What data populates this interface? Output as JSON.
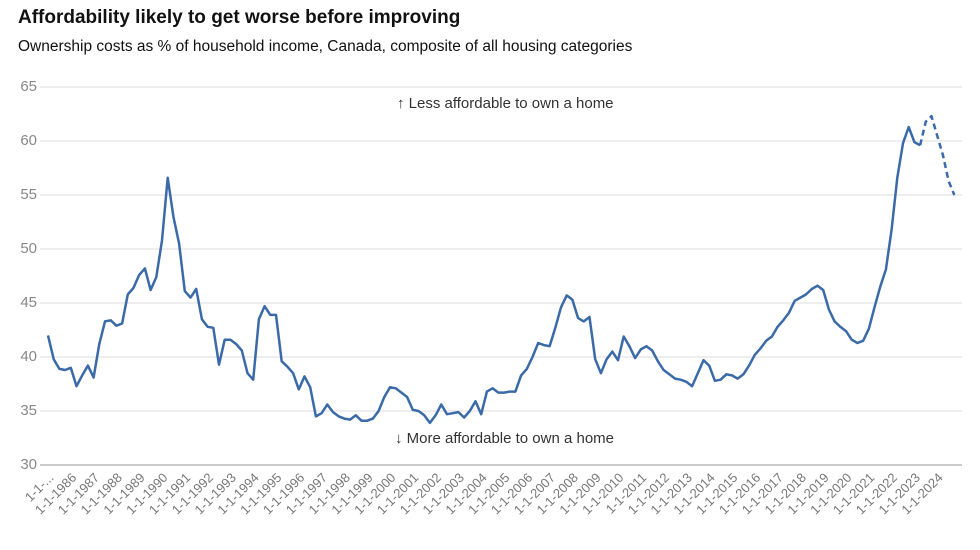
{
  "chart_data": {
    "type": "line",
    "title": "Affordability likely to get worse before improving",
    "subtitle": "Ownership costs as % of household income, Canada, composite of all housing categories",
    "annotations": [
      "↑ Less affordable to own a home",
      "↓ More affordable to own a home"
    ],
    "categories": [
      "1-1-...",
      null,
      null,
      null,
      "1-1-1986",
      null,
      null,
      null,
      "1-1-1987",
      null,
      null,
      null,
      "1-1-1988",
      null,
      null,
      null,
      "1-1-1989",
      null,
      null,
      null,
      "1-1-1990",
      null,
      null,
      null,
      "1-1-1991",
      null,
      null,
      null,
      "1-1-1992",
      null,
      null,
      null,
      "1-1-1993",
      null,
      null,
      null,
      "1-1-1994",
      null,
      null,
      null,
      "1-1-1995",
      null,
      null,
      null,
      "1-1-1996",
      null,
      null,
      null,
      "1-1-1997",
      null,
      null,
      null,
      "1-1-1998",
      null,
      null,
      null,
      "1-1-1999",
      null,
      null,
      null,
      "1-1-2000",
      null,
      null,
      null,
      "1-1-2001",
      null,
      null,
      null,
      "1-1-2002",
      null,
      null,
      null,
      "1-1-2003",
      null,
      null,
      null,
      "1-1-2004",
      null,
      null,
      null,
      "1-1-2005",
      null,
      null,
      null,
      "1-1-2006",
      null,
      null,
      null,
      "1-1-2007",
      null,
      null,
      null,
      "1-1-2008",
      null,
      null,
      null,
      "1-1-2009",
      null,
      null,
      null,
      "1-1-2010",
      null,
      null,
      null,
      "1-1-2011",
      null,
      null,
      null,
      "1-1-2012",
      null,
      null,
      null,
      "1-1-2013",
      null,
      null,
      null,
      "1-1-2014",
      null,
      null,
      null,
      "1-1-2015",
      null,
      null,
      null,
      "1-1-2016",
      null,
      null,
      null,
      "1-1-2017",
      null,
      null,
      null,
      "1-1-2018",
      null,
      null,
      null,
      "1-1-2019",
      null,
      null,
      null,
      "1-1-2020",
      null,
      null,
      null,
      "1-1-2021",
      null,
      null,
      null,
      "1-1-2022",
      null,
      null,
      null,
      "1-1-2023",
      null,
      null,
      null,
      "1-1-2024",
      null,
      null,
      null
    ],
    "series": [
      {
        "color": "#3a6aa8",
        "dashed": false,
        "values": [
          42,
          39.8,
          38.9,
          38.8,
          39.0,
          37.3,
          38.3,
          39.2,
          38.1,
          41.2,
          43.3,
          43.4,
          42.9,
          43.1,
          45.8,
          46.4,
          47.6,
          48.2,
          46.2,
          47.4,
          50.8,
          56.6,
          53.0,
          50.5,
          46.1,
          45.5,
          46.3,
          43.5,
          42.8,
          42.7,
          39.3,
          41.6,
          41.6,
          41.2,
          40.6,
          38.5,
          37.9,
          43.5,
          44.7,
          43.9,
          43.9,
          39.6,
          39.1,
          38.5,
          37.0,
          38.2,
          37.2,
          34.5,
          34.8,
          35.6,
          34.9,
          34.5,
          34.3,
          34.2,
          34.6,
          34.1,
          34.1,
          34.3,
          35.0,
          36.3,
          37.2,
          37.1,
          36.7,
          36.3,
          35.1,
          35.0,
          34.6,
          33.9,
          34.6,
          35.6,
          34.7,
          34.8,
          34.9,
          34.4,
          35.0,
          35.9,
          34.7,
          36.8,
          37.1,
          36.7,
          36.7,
          36.8,
          36.8,
          38.3,
          38.9,
          40.0,
          41.3,
          41.1,
          41.0,
          42.7,
          44.6,
          45.7,
          45.3,
          43.6,
          43.3,
          43.7,
          39.8,
          38.5,
          39.8,
          40.5,
          39.7,
          41.9,
          41.0,
          39.9,
          40.7,
          41.0,
          40.6,
          39.6,
          38.8,
          38.4,
          38.0,
          37.9,
          37.7,
          37.3,
          38.5,
          39.7,
          39.2,
          37.8,
          37.9,
          38.4,
          38.3,
          38.0,
          38.4,
          39.2,
          40.2,
          40.8,
          41.5,
          41.9,
          42.8,
          43.4,
          44.1,
          45.2,
          45.5,
          45.8,
          46.3,
          46.6,
          46.2,
          44.4,
          43.3,
          42.8,
          42.4,
          41.6,
          41.3,
          41.5,
          42.6,
          44.6,
          46.5,
          48.1,
          51.8,
          56.6,
          59.8,
          61.3,
          59.9,
          59.6,
          null,
          null,
          null,
          null,
          null,
          null
        ]
      },
      {
        "color": "#3a6aa8",
        "dashed": true,
        "values": [
          null,
          null,
          null,
          null,
          null,
          null,
          null,
          null,
          null,
          null,
          null,
          null,
          null,
          null,
          null,
          null,
          null,
          null,
          null,
          null,
          null,
          null,
          null,
          null,
          null,
          null,
          null,
          null,
          null,
          null,
          null,
          null,
          null,
          null,
          null,
          null,
          null,
          null,
          null,
          null,
          null,
          null,
          null,
          null,
          null,
          null,
          null,
          null,
          null,
          null,
          null,
          null,
          null,
          null,
          null,
          null,
          null,
          null,
          null,
          null,
          null,
          null,
          null,
          null,
          null,
          null,
          null,
          null,
          null,
          null,
          null,
          null,
          null,
          null,
          null,
          null,
          null,
          null,
          null,
          null,
          null,
          null,
          null,
          null,
          null,
          null,
          null,
          null,
          null,
          null,
          null,
          null,
          null,
          null,
          null,
          null,
          null,
          null,
          null,
          null,
          null,
          null,
          null,
          null,
          null,
          null,
          null,
          null,
          null,
          null,
          null,
          null,
          null,
          null,
          null,
          null,
          null,
          null,
          null,
          null,
          null,
          null,
          null,
          null,
          null,
          null,
          null,
          null,
          null,
          null,
          null,
          null,
          null,
          null,
          null,
          null,
          null,
          null,
          null,
          null,
          null,
          null,
          null,
          null,
          null,
          null,
          null,
          null,
          null,
          null,
          null,
          null,
          null,
          59.6,
          61.8,
          62.3,
          60.5,
          58.7,
          56.3,
          55.0
        ]
      }
    ],
    "ylim": [
      30,
      65
    ],
    "yticks": [
      30,
      35,
      40,
      45,
      50,
      55,
      60,
      65
    ],
    "grid": true
  }
}
